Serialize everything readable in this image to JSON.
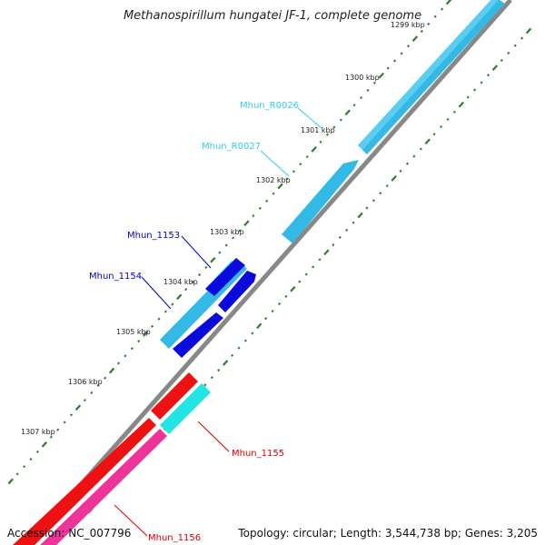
{
  "title": "Methanospirillum hungatei JF-1, complete genome",
  "accession": "Accession: NC_007796",
  "summary": "Topology: circular; Length: 3,544,738 bp; Genes: 3,205",
  "colors": {
    "backbone": "#888888",
    "tick": "#2e7d32",
    "rrna_label": "#33ccee",
    "cds_blue_label": "#0000cc",
    "cds_red_label": "#dd0000",
    "feature_light_blue": "#33b9e6",
    "feature_dark_blue": "#0a0adc",
    "feature_cyan": "#22e5e5",
    "feature_red": "#ee1111",
    "feature_pink": "#ee3399"
  },
  "tick_labels": [
    "1299 kbp",
    "1300 kbp",
    "1301 kbp",
    "1302 kbp",
    "1303 kbp",
    "1304 kbp",
    "1305 kbp",
    "1306 kbp",
    "1307 kbp"
  ],
  "gene_labels": [
    {
      "text": "Mhun_R0026",
      "kind": "rrna"
    },
    {
      "text": "Mhun_R0027",
      "kind": "rrna"
    },
    {
      "text": "Mhun_1153",
      "kind": "cds_blue"
    },
    {
      "text": "Mhun_1154",
      "kind": "cds_blue"
    },
    {
      "text": "Mhun_1155",
      "kind": "cds_red"
    },
    {
      "text": "Mhun_1156",
      "kind": "cds_red"
    }
  ]
}
